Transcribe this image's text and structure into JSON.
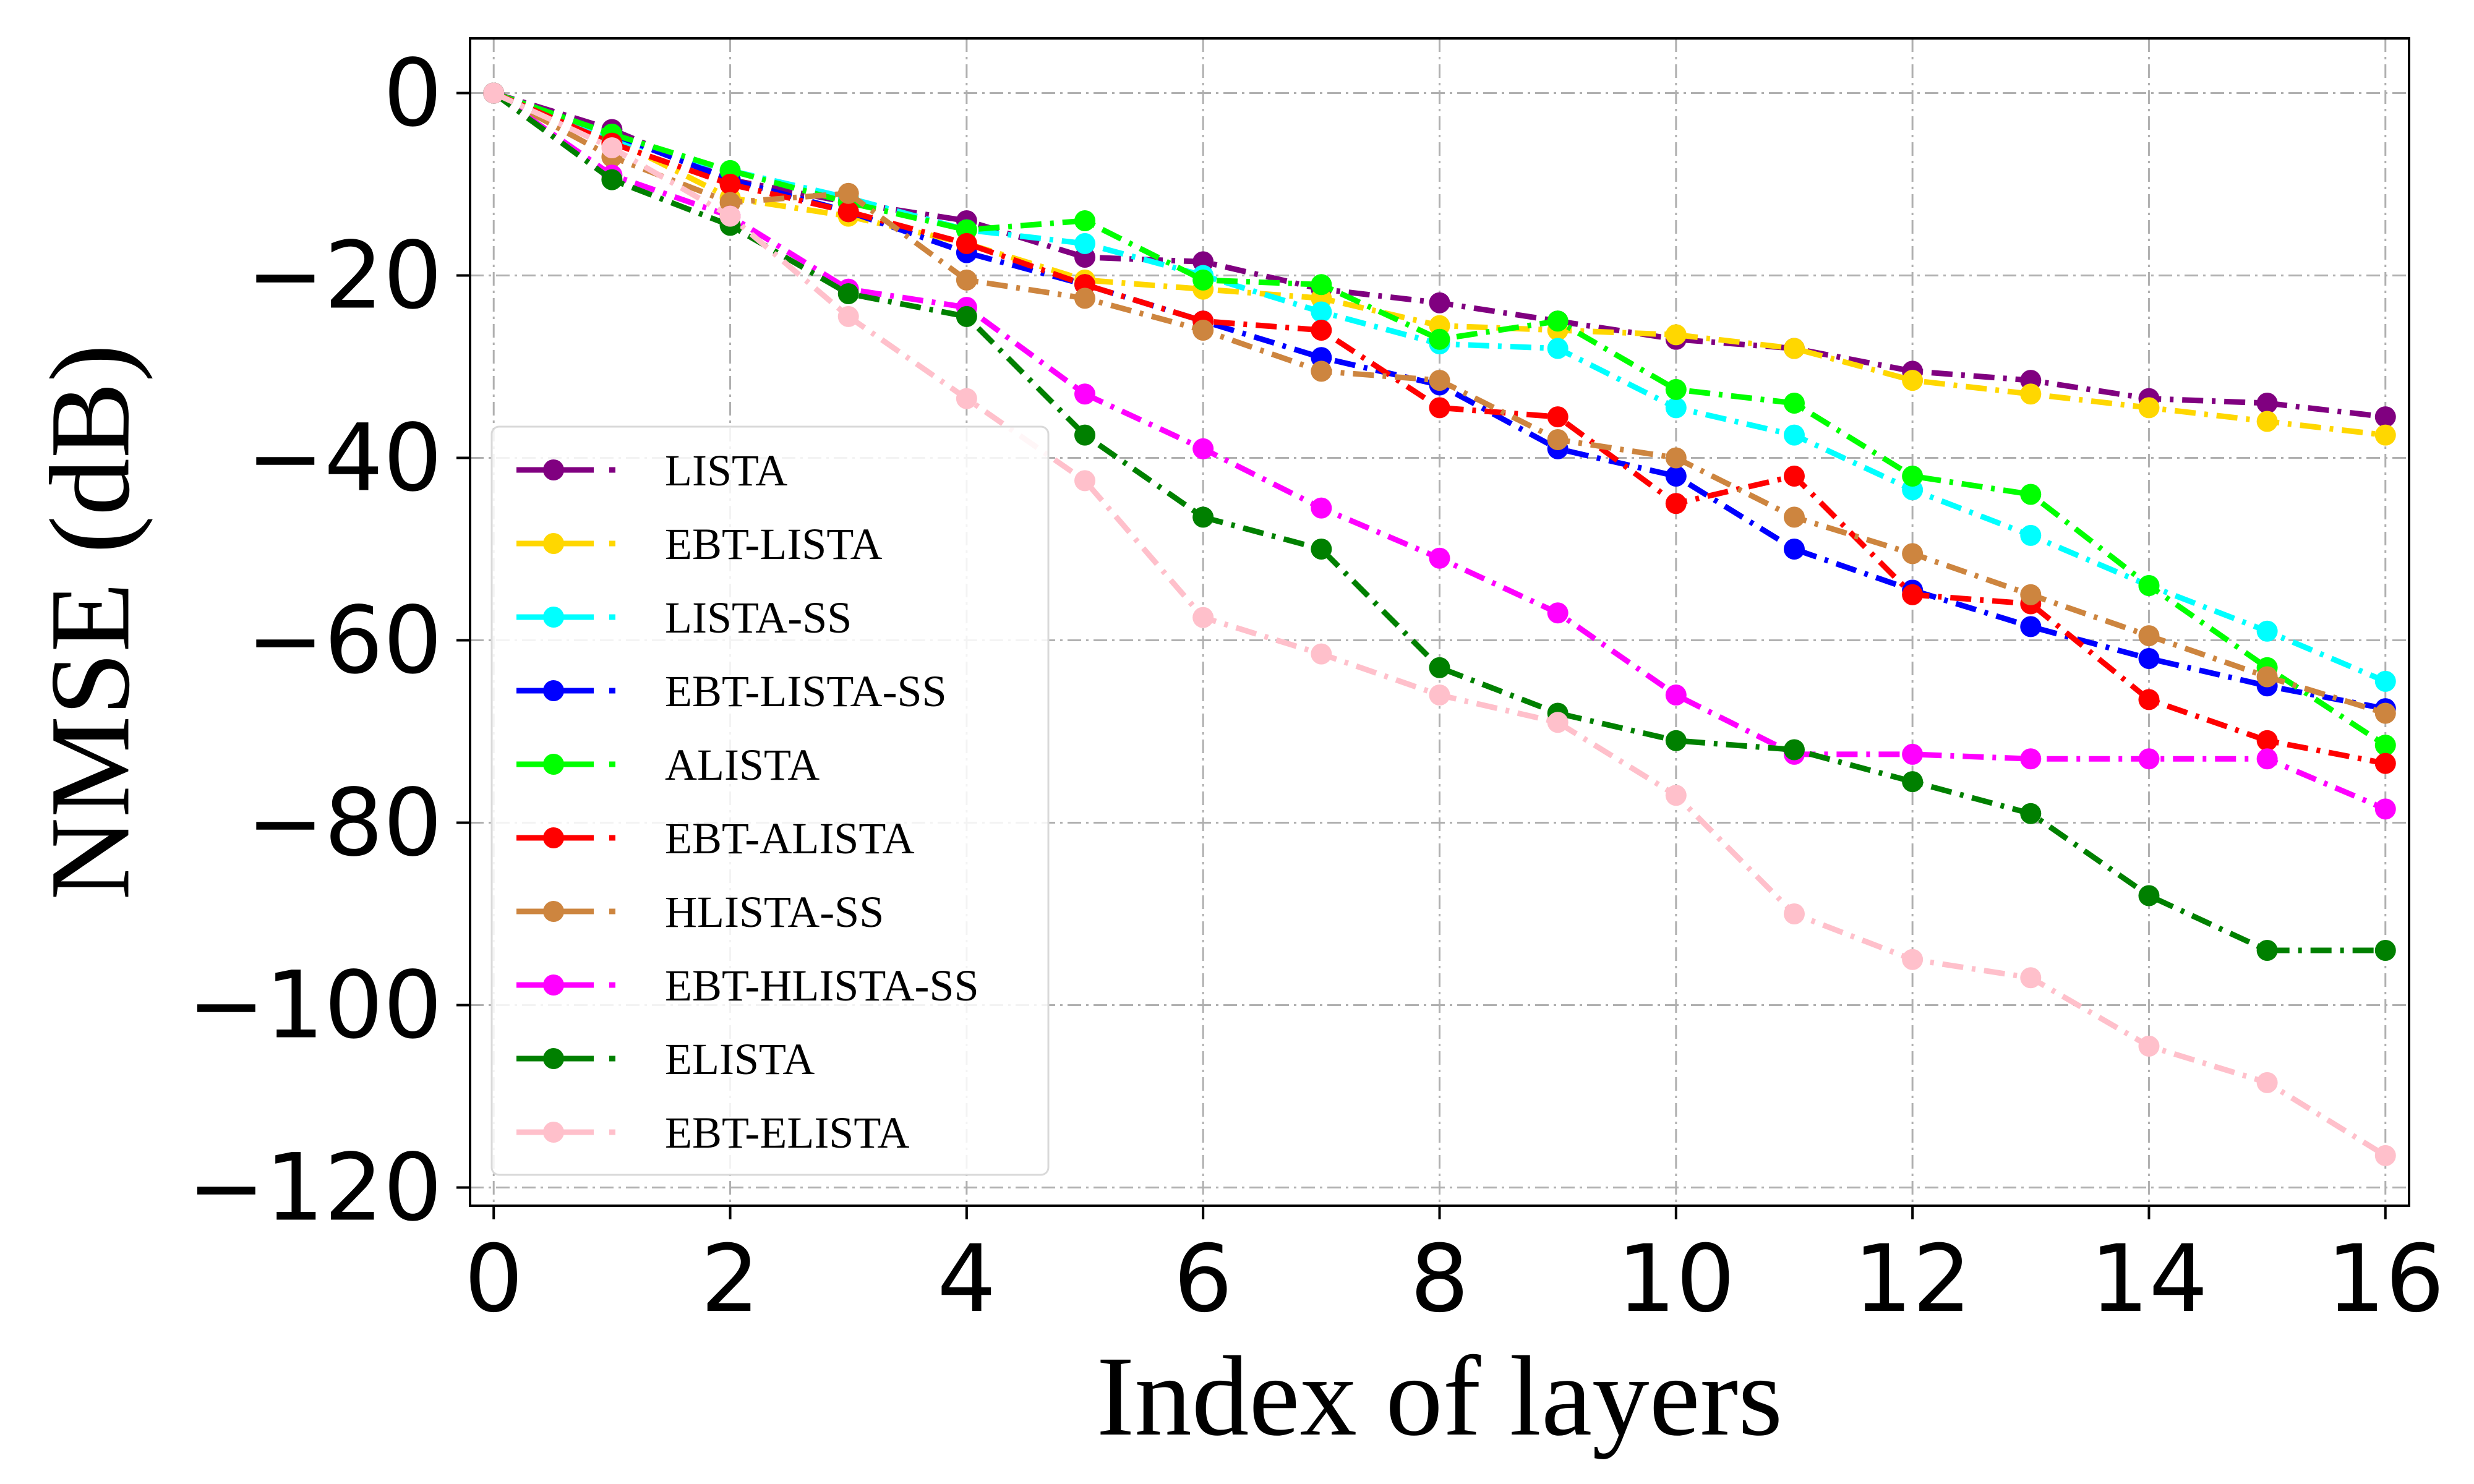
{
  "chart_data": {
    "type": "line",
    "xlabel": "Index of layers",
    "ylabel": "NMSE (dB)",
    "xlim": [
      -0.2,
      16.2
    ],
    "ylim": [
      -122,
      6
    ],
    "x_ticks": [
      0,
      2,
      4,
      6,
      8,
      10,
      12,
      14,
      16
    ],
    "x_tick_labels": [
      "0",
      "2",
      "4",
      "6",
      "8",
      "10",
      "12",
      "14",
      "16"
    ],
    "y_ticks": [
      0,
      -20,
      -40,
      -60,
      -80,
      -100,
      -120
    ],
    "y_tick_labels": [
      "0",
      "−20",
      "−40",
      "−60",
      "−80",
      "−100",
      "−120"
    ],
    "grid": true,
    "legend_position": "center-left",
    "x": [
      0,
      1,
      2,
      3,
      4,
      5,
      6,
      7,
      8,
      9,
      10,
      11,
      12,
      13,
      14,
      15,
      16
    ],
    "series": [
      {
        "name": "LISTA",
        "color": "#800080",
        "values": [
          0,
          -4,
          -9.5,
          -12,
          -14,
          -18,
          -18.5,
          -21.5,
          -23,
          -25,
          -27,
          -28,
          -30.5,
          -31.5,
          -33.5,
          -34,
          -35.5
        ]
      },
      {
        "name": "EBT-LISTA",
        "color": "#FFD700",
        "values": [
          0,
          -5,
          -11.5,
          -13.5,
          -16.5,
          -20.5,
          -21.5,
          -22.5,
          -25.5,
          -26,
          -26.5,
          -28,
          -31.5,
          -33,
          -34.5,
          -36,
          -37.5
        ]
      },
      {
        "name": "LISTA-SS",
        "color": "#00FFFF",
        "values": [
          0,
          -5,
          -8.5,
          -11.5,
          -15,
          -16.5,
          -20,
          -24,
          -27.5,
          -28,
          -34.5,
          -37.5,
          -43.5,
          -48.5,
          -54,
          -59,
          -64.5
        ]
      },
      {
        "name": "EBT-LISTA-SS",
        "color": "#0000FF",
        "values": [
          0,
          -4.5,
          -9.5,
          -13,
          -17.5,
          -21,
          -25,
          -29,
          -32,
          -39,
          -42,
          -50,
          -54.5,
          -58.5,
          -62,
          -65,
          -67.5
        ]
      },
      {
        "name": "ALISTA",
        "color": "#00FF00",
        "values": [
          0,
          -4.5,
          -8.5,
          -12,
          -15,
          -14,
          -20.5,
          -21,
          -27,
          -25,
          -32.5,
          -34,
          -42,
          -44,
          -54,
          -63,
          -71.5
        ]
      },
      {
        "name": "EBT-ALISTA",
        "color": "#FF0000",
        "values": [
          0,
          -5.5,
          -10,
          -13,
          -16.5,
          -21,
          -25,
          -26,
          -34.5,
          -35.5,
          -45,
          -42,
          -55,
          -56,
          -66.5,
          -71,
          -73.5
        ]
      },
      {
        "name": "HLISTA-SS",
        "color": "#CD853F",
        "values": [
          0,
          -7,
          -12,
          -11,
          -20.5,
          -22.5,
          -26,
          -30.5,
          -31.5,
          -38,
          -40,
          -46.5,
          -50.5,
          -55,
          -59.5,
          -64,
          -68
        ]
      },
      {
        "name": "EBT-HLISTA-SS",
        "color": "#FF00FF",
        "values": [
          0,
          -9,
          -13.5,
          -21.5,
          -23.5,
          -33,
          -39,
          -45.5,
          -51,
          -57,
          -66,
          -72.5,
          -72.5,
          -73,
          -73,
          -73,
          -78.5
        ]
      },
      {
        "name": "ELISTA",
        "color": "#008000",
        "values": [
          0,
          -9.5,
          -14.5,
          -22,
          -24.5,
          -37.5,
          -46.5,
          -50,
          -63,
          -68,
          -71,
          -72,
          -75.5,
          -79,
          -88,
          -94,
          -94
        ]
      },
      {
        "name": "EBT-ELISTA",
        "color": "#FFC0CB",
        "values": [
          0,
          -6,
          -13.5,
          -24.5,
          -33.5,
          -42.5,
          -57.5,
          -61.5,
          -66,
          -69,
          -77,
          -90,
          -95,
          -97,
          -104.5,
          -108.5,
          -116.5
        ]
      }
    ]
  }
}
